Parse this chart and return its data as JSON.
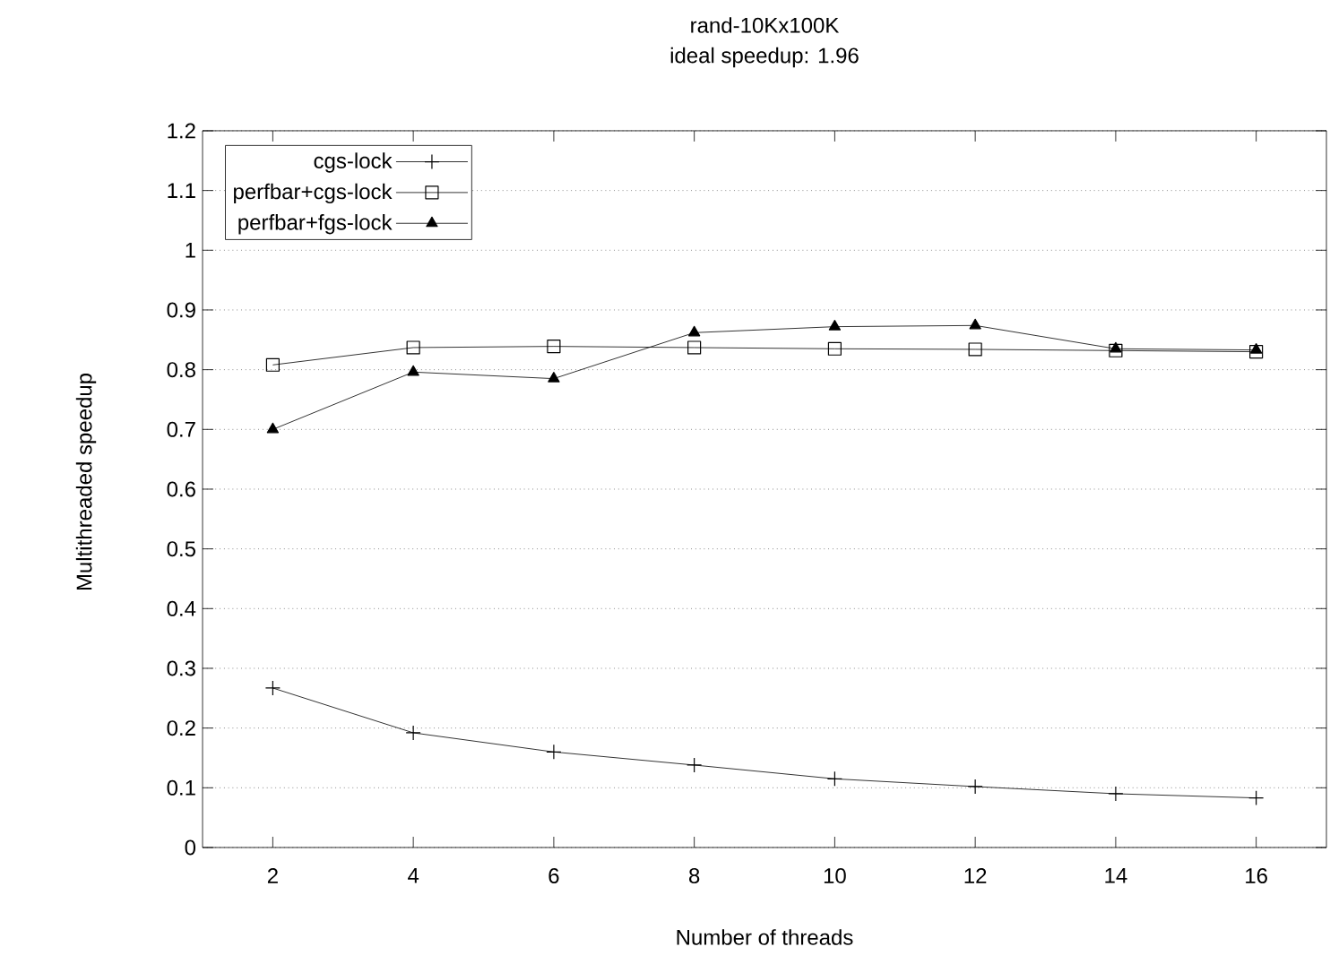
{
  "chart_data": {
    "type": "line",
    "title": "rand-10Kx100K",
    "subtitle": "ideal speedup: 1.96",
    "xlabel": "Number of threads",
    "ylabel": "Multithreaded speedup",
    "x": [
      2,
      4,
      6,
      8,
      10,
      12,
      14,
      16
    ],
    "series": [
      {
        "name": "cgs-lock",
        "color": "#000000",
        "marker": "cross",
        "values": [
          0.267,
          0.192,
          0.16,
          0.138,
          0.115,
          0.102,
          0.09,
          0.083
        ]
      },
      {
        "name": "perfbar+cgs-lock",
        "color": "#000000",
        "marker": "square",
        "values": [
          0.808,
          0.837,
          0.839,
          0.837,
          0.835,
          0.834,
          0.832,
          0.83
        ]
      },
      {
        "name": "perfbar+fgs-lock",
        "color": "#000000",
        "marker": "triangle",
        "values": [
          0.7,
          0.796,
          0.785,
          0.862,
          0.872,
          0.874,
          0.835,
          0.833
        ]
      }
    ],
    "xlim": [
      1,
      17
    ],
    "xticks": [
      2,
      4,
      6,
      8,
      10,
      12,
      14,
      16
    ],
    "ylim": [
      0,
      1.2
    ],
    "yticks": [
      0,
      0.1,
      0.2,
      0.3,
      0.4,
      0.5,
      0.6,
      0.7,
      0.8,
      0.9,
      1,
      1.1,
      1.2
    ],
    "grid": "y",
    "legend": "top left",
    "line_style": "solid"
  }
}
